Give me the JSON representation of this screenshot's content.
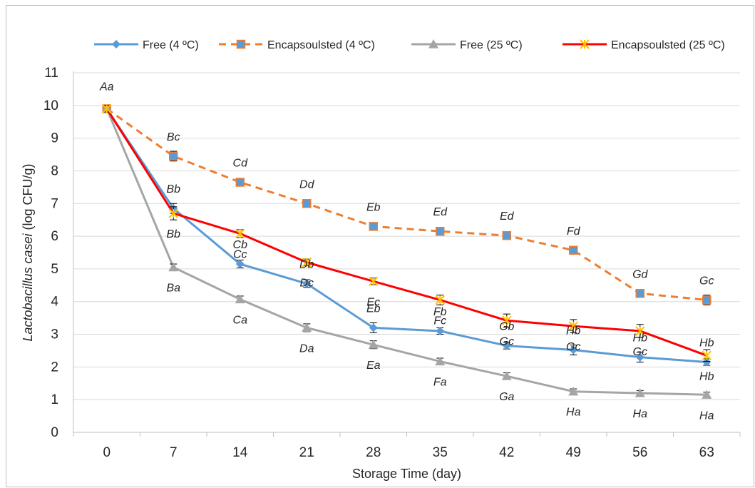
{
  "chart_data": {
    "type": "line",
    "title": "",
    "xlabel": "Storage Time (day)",
    "ylabel_italic": "Lactobacillus casei",
    "ylabel_rest": " (log CFU/g)",
    "x": [
      0,
      7,
      14,
      21,
      28,
      35,
      42,
      49,
      56,
      63
    ],
    "x_tick_labels": [
      "0",
      "7",
      "14",
      "21",
      "28",
      "35",
      "42",
      "49",
      "56",
      "63"
    ],
    "y_tick_labels": [
      "0",
      "1",
      "2",
      "3",
      "4",
      "5",
      "6",
      "7",
      "8",
      "9",
      "10",
      "11"
    ],
    "ylim": [
      0,
      11
    ],
    "grid": "horizontal",
    "legend_position": "top",
    "series": [
      {
        "name": "Free (4 ºC)",
        "color": "#5b9bd5",
        "marker": "diamond",
        "dash": false,
        "values": [
          9.9,
          6.85,
          5.15,
          4.55,
          3.2,
          3.1,
          2.65,
          2.52,
          2.3,
          2.15
        ],
        "errors": [
          0.1,
          0.15,
          0.12,
          0.12,
          0.15,
          0.1,
          0.1,
          0.15,
          0.15,
          0.1
        ],
        "annotations": [
          "",
          "Bb",
          "Cb",
          "Db",
          "Eb",
          "Fb",
          "Gb",
          "Hb",
          "Hb",
          "Hb"
        ]
      },
      {
        "name": "Encapsoulsted (4 ºC)",
        "color": "#ed7d31",
        "marker": "square",
        "dash": true,
        "values": [
          9.9,
          8.45,
          7.65,
          7.0,
          6.3,
          6.15,
          6.02,
          5.57,
          4.25,
          4.05
        ],
        "errors": [
          0.1,
          0.15,
          0.12,
          0.1,
          0.1,
          0.12,
          0.08,
          0.08,
          0.12,
          0.15
        ],
        "annotations": [
          "",
          "Bc",
          "Cd",
          "Dd",
          "Eb",
          "Ed",
          "Ed",
          "Fd",
          "Gd",
          "Gc"
        ]
      },
      {
        "name": "Free (25 ºC)",
        "color": "#a5a5a5",
        "marker": "triangle",
        "dash": false,
        "values": [
          9.9,
          5.05,
          4.07,
          3.2,
          2.68,
          2.17,
          1.72,
          1.25,
          1.2,
          1.15
        ],
        "errors": [
          0.1,
          0.1,
          0.1,
          0.12,
          0.12,
          0.1,
          0.1,
          0.08,
          0.08,
          0.08
        ],
        "annotations": [
          "",
          "Ba",
          "Ca",
          "Da",
          "Ea",
          "Fa",
          "Ga",
          "Ha",
          "Ha",
          "Ha"
        ]
      },
      {
        "name": "Encapsoulsted (25 ºC)",
        "color": "#ff0000",
        "marker": "star",
        "marker_color": "#ffc000",
        "dash": false,
        "values": [
          9.9,
          6.7,
          6.08,
          5.2,
          4.62,
          4.05,
          3.42,
          3.25,
          3.1,
          2.35
        ],
        "errors": [
          0.1,
          0.2,
          0.12,
          0.1,
          0.1,
          0.15,
          0.2,
          0.2,
          0.2,
          0.18
        ],
        "annotations": [
          "Aa",
          "Bb",
          "Cc",
          "Dc",
          "Ec",
          "Fc",
          "Gc",
          "Gc",
          "Gc",
          "Hb"
        ]
      }
    ]
  }
}
